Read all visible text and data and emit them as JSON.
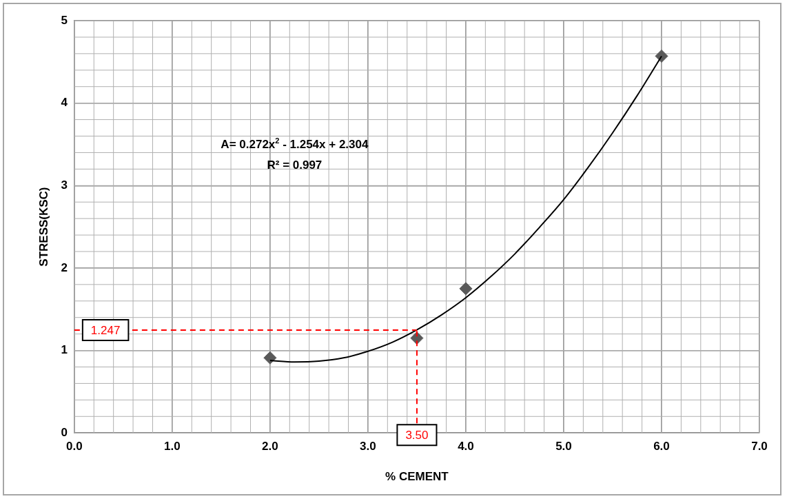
{
  "chart_data": {
    "type": "scatter",
    "xlabel": "% CEMENT",
    "ylabel": "STRESS(KSC)",
    "xlim": [
      0,
      7
    ],
    "xticks": [
      {
        "value": 0,
        "label": "0.0"
      },
      {
        "value": 1,
        "label": "1.0"
      },
      {
        "value": 2,
        "label": "2.0"
      },
      {
        "value": 3,
        "label": "3.0"
      },
      {
        "value": 4,
        "label": "4.0"
      },
      {
        "value": 5,
        "label": "5.0"
      },
      {
        "value": 6,
        "label": "6.0"
      },
      {
        "value": 7,
        "label": "7.0"
      }
    ],
    "ylim": [
      0,
      5
    ],
    "yticks": [
      0,
      1,
      2,
      3,
      4,
      5
    ],
    "grid": true,
    "legend": false,
    "series": [
      {
        "type": "line",
        "color": "#000000",
        "marker": "none",
        "line_style": "solid",
        "x": [
          2,
          2.25,
          2.5,
          2.75,
          3,
          3.25,
          3.5,
          3.75,
          4,
          4.25,
          4.5,
          4.75,
          5,
          5.25,
          5.5,
          5.75,
          6
        ],
        "values": [
          0.88,
          0.86,
          0.87,
          0.91,
          0.99,
          1.1,
          1.25,
          1.43,
          1.64,
          1.89,
          2.17,
          2.49,
          2.83,
          3.22,
          3.64,
          4.09,
          4.57
        ]
      },
      {
        "color": "#595959",
        "marker": "diamond",
        "x": [
          2,
          3.5,
          4,
          6
        ],
        "values": [
          0.91,
          1.15,
          1.75,
          4.57
        ]
      }
    ],
    "ref_lines": [
      {
        "axis": "y",
        "value": 1.247,
        "label": "1.247",
        "color": "#ff0000",
        "line_style": "dashed"
      },
      {
        "axis": "x",
        "value": 3.5,
        "label": "3.50",
        "color": "#ff0000",
        "line_style": "dashed"
      }
    ],
    "annotations": [
      "A= 0.272x$^{2}$ - 1.254x + 2.304",
      "R² = 0.997"
    ]
  }
}
